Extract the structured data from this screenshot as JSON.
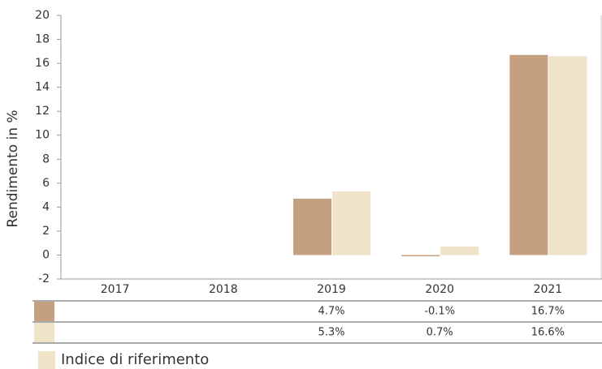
{
  "chart_data": {
    "type": "bar",
    "y_label": "Rendimento in %",
    "categories": [
      "2017",
      "2018",
      "2019",
      "2020",
      "2021"
    ],
    "series": [
      {
        "color": "#c4a080",
        "values": [
          null,
          null,
          4.7,
          -0.1,
          16.7
        ],
        "value_labels": [
          null,
          null,
          "4.7%",
          "-0.1%",
          "16.7%"
        ]
      },
      {
        "name": "Indice di riferimento",
        "color": "#efe3c8",
        "values": [
          null,
          null,
          5.3,
          0.7,
          16.6
        ],
        "value_labels": [
          null,
          null,
          "5.3%",
          "0.7%",
          "16.6%"
        ]
      }
    ],
    "ylim": [
      -2,
      20
    ],
    "yticks": [
      -2,
      0,
      2,
      4,
      6,
      8,
      10,
      12,
      14,
      16,
      18,
      20
    ],
    "grid": false
  }
}
